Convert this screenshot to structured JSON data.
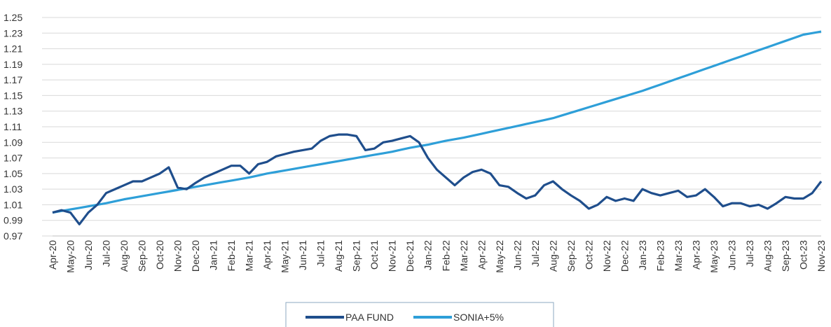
{
  "chart_data": {
    "type": "line",
    "categories": [
      "Apr-20",
      null,
      "May-20",
      null,
      "Jun-20",
      null,
      "Jul-20",
      null,
      "Aug-20",
      null,
      "Sep-20",
      null,
      "Oct-20",
      null,
      "Nov-20",
      null,
      "Dec-20",
      null,
      "Jan-21",
      null,
      "Feb-21",
      null,
      "Mar-21",
      null,
      "Apr-21",
      null,
      "May-21",
      null,
      "Jun-21",
      null,
      "Jul-21",
      null,
      "Aug-21",
      null,
      "Sep-21",
      null,
      "Oct-21",
      null,
      "Nov-21",
      null,
      "Dec-21",
      null,
      "Jan-22",
      null,
      "Feb-22",
      null,
      "Mar-22",
      null,
      "Apr-22",
      null,
      "May-22",
      null,
      "Jun-22",
      null,
      "Jul-22",
      null,
      "Aug-22",
      null,
      "Sep-22",
      null,
      "Oct-22",
      null,
      "Nov-22",
      null,
      "Dec-22",
      null,
      "Jan-23",
      null,
      "Feb-23",
      null,
      "Mar-23",
      null,
      "Apr-23",
      null,
      "May-23",
      null,
      "Jun-23",
      null,
      "Jul-23",
      null,
      "Aug-23",
      null,
      "Sep-23",
      null,
      "Oct-23",
      null,
      "Nov-23"
    ],
    "series": [
      {
        "name": "PAA FUND",
        "color": "#1f4e8c",
        "values": [
          1.0,
          1.003,
          1.0,
          0.985,
          1.0,
          1.01,
          1.025,
          1.03,
          1.035,
          1.04,
          1.04,
          1.045,
          1.05,
          1.058,
          1.032,
          1.03,
          1.038,
          1.045,
          1.05,
          1.055,
          1.06,
          1.06,
          1.05,
          1.062,
          1.065,
          1.072,
          1.075,
          1.078,
          1.08,
          1.082,
          1.092,
          1.098,
          1.1,
          1.1,
          1.098,
          1.08,
          1.082,
          1.09,
          1.092,
          1.095,
          1.098,
          1.09,
          1.07,
          1.055,
          1.045,
          1.035,
          1.045,
          1.052,
          1.055,
          1.05,
          1.035,
          1.033,
          1.025,
          1.018,
          1.022,
          1.035,
          1.04,
          1.03,
          1.022,
          1.015,
          1.005,
          1.01,
          1.02,
          1.015,
          1.018,
          1.015,
          1.03,
          1.025,
          1.022,
          1.025,
          1.028,
          1.02,
          1.022,
          1.03,
          1.02,
          1.008,
          1.012,
          1.012,
          1.008,
          1.01,
          1.005,
          1.012,
          1.02,
          1.018,
          1.018,
          1.025,
          1.04
        ]
      },
      {
        "name": "SONIA+5%",
        "color": "#2e9fd8",
        "values": [
          1.0,
          1.002,
          1.004,
          1.006,
          1.008,
          1.01,
          1.012,
          1.0145,
          1.017,
          1.019,
          1.021,
          1.023,
          1.025,
          1.027,
          1.029,
          1.031,
          1.033,
          1.035,
          1.037,
          1.039,
          1.041,
          1.043,
          1.045,
          1.0475,
          1.05,
          1.052,
          1.054,
          1.056,
          1.058,
          1.06,
          1.062,
          1.064,
          1.066,
          1.068,
          1.07,
          1.072,
          1.074,
          1.076,
          1.078,
          1.0805,
          1.083,
          1.085,
          1.087,
          1.0895,
          1.092,
          1.094,
          1.096,
          1.0985,
          1.101,
          1.1035,
          1.106,
          1.1085,
          1.111,
          1.1135,
          1.116,
          1.1185,
          1.121,
          1.1245,
          1.128,
          1.1315,
          1.135,
          1.1385,
          1.142,
          1.1455,
          1.149,
          1.1525,
          1.156,
          1.16,
          1.164,
          1.168,
          1.172,
          1.176,
          1.18,
          1.184,
          1.188,
          1.192,
          1.196,
          1.2,
          1.204,
          1.208,
          1.212,
          1.216,
          1.22,
          1.224,
          1.228,
          1.23,
          1.232
        ]
      }
    ],
    "ylim": [
      0.97,
      1.25
    ],
    "yticks": [
      0.97,
      0.99,
      1.01,
      1.03,
      1.05,
      1.07,
      1.09,
      1.11,
      1.13,
      1.15,
      1.17,
      1.19,
      1.21,
      1.23,
      1.25
    ],
    "grid": true,
    "legend": "bottom"
  }
}
